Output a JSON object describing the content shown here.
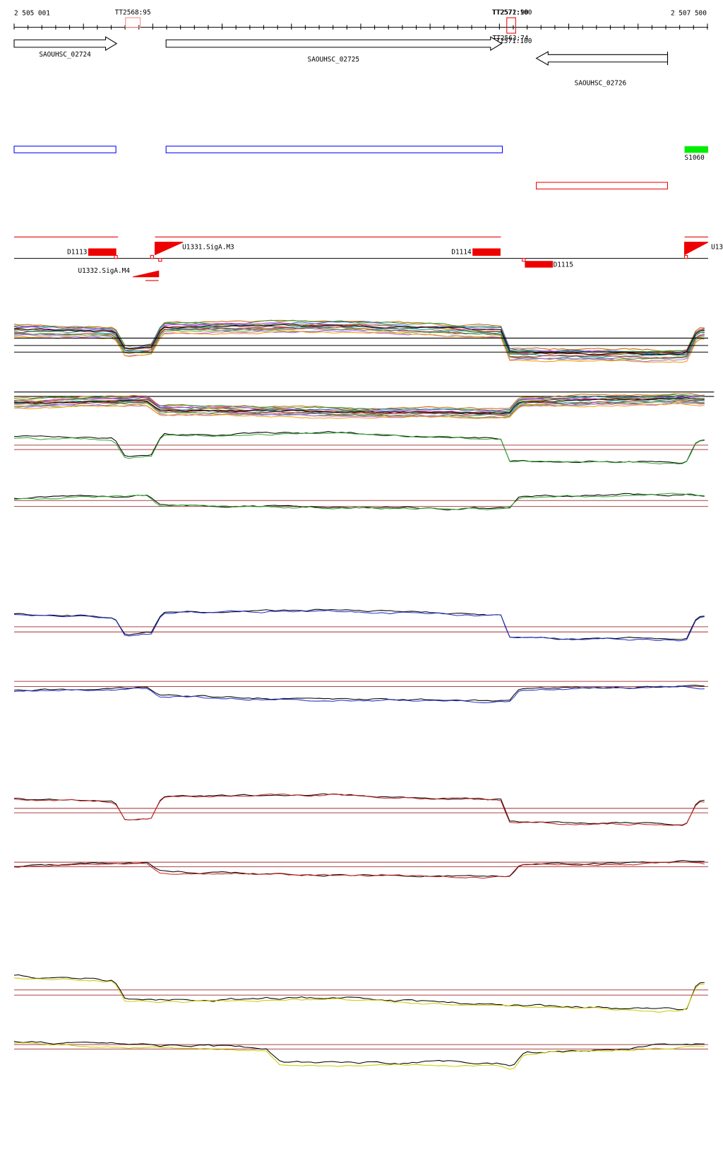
{
  "ruler": {
    "start": "2 505 001",
    "end": "2 507 500"
  },
  "terminators": [
    "TT2568:95",
    "TT2572:90",
    "TT2571:100",
    "TT2563:74",
    "TT2571:100"
  ],
  "genes": [
    "SAOUHSC_02724",
    "SAOUHSC_02725",
    "SAOUHSC_02726"
  ],
  "srna": "S1060",
  "segments": [
    "D1113",
    "U1331.SigA.M3",
    "U1332.SigA.M4",
    "D1114",
    "D1115",
    "U13"
  ]
}
